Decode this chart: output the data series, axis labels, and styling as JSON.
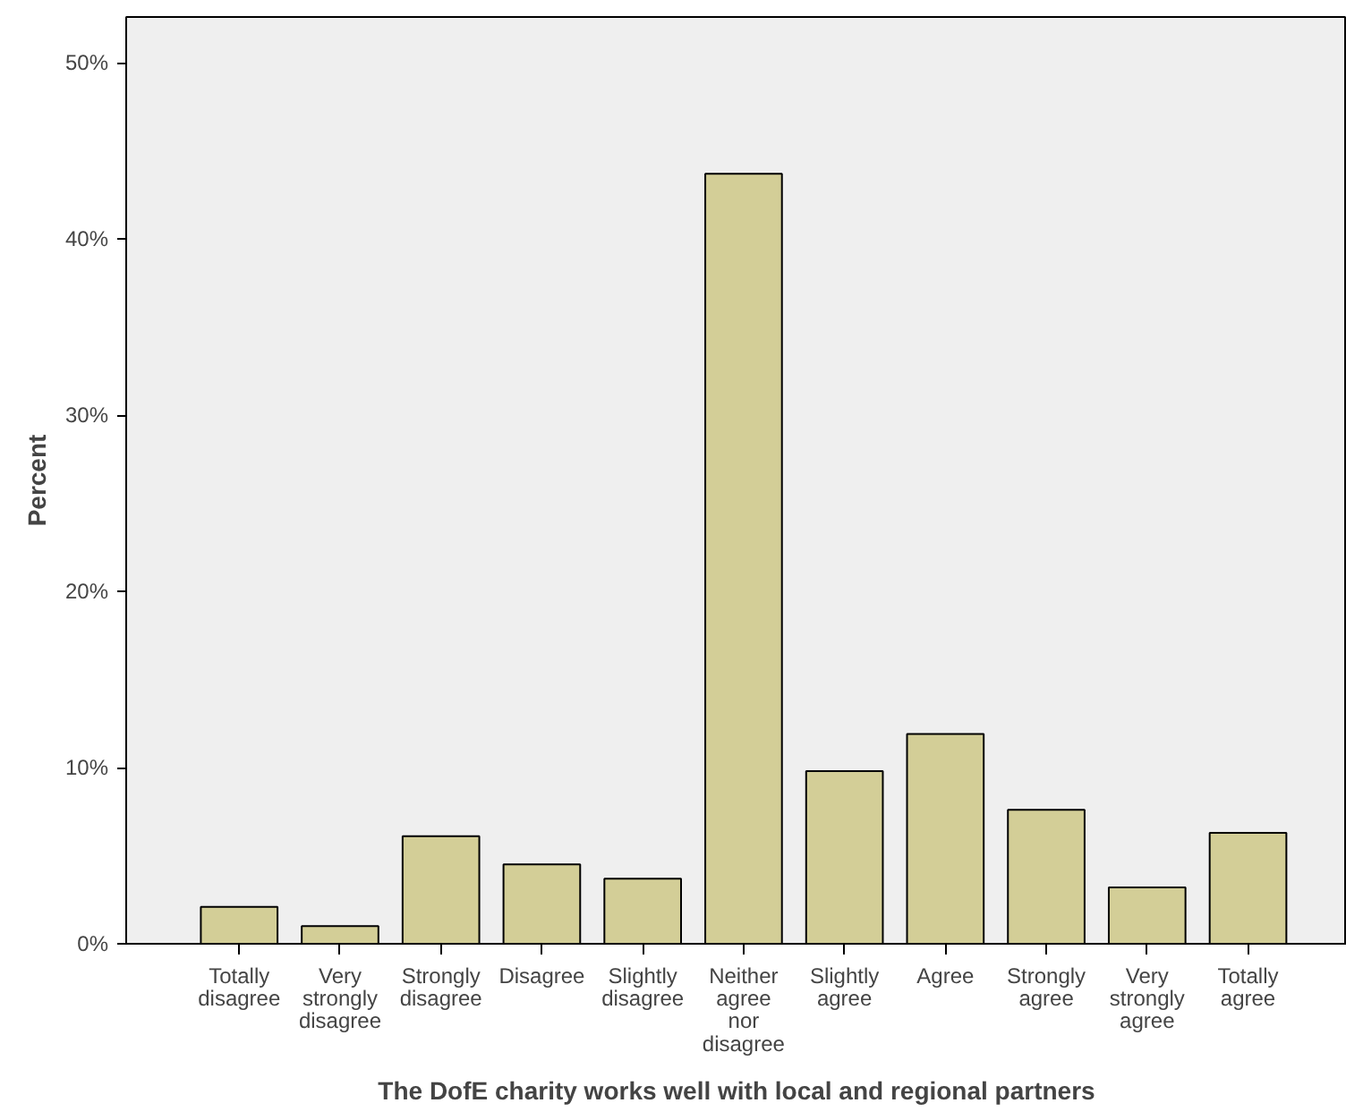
{
  "chart_data": {
    "type": "bar",
    "xlabel": "The DofE charity works well with local and regional partners",
    "ylabel": "Percent",
    "categories": [
      "Totally\ndisagree",
      "Very\nstrongly\ndisagree",
      "Strongly\ndisagree",
      "Disagree",
      "Slightly\ndisagree",
      "Neither\nagree\nnor\ndisagree",
      "Slightly\nagree",
      "Agree",
      "Strongly\nagree",
      "Very\nstrongly\nagree",
      "Totally\nagree"
    ],
    "values": [
      2.1,
      1.0,
      6.1,
      4.5,
      3.7,
      43.7,
      9.8,
      11.9,
      7.6,
      3.2,
      6.3
    ],
    "color": "#d3ce97",
    "ylim": [
      0,
      52.6
    ],
    "yticks": [
      {
        "value": 0,
        "label": "0%"
      },
      {
        "value": 10,
        "label": "10%"
      },
      {
        "value": 20,
        "label": "20%"
      },
      {
        "value": 30,
        "label": "30%"
      },
      {
        "value": 40,
        "label": "40%"
      },
      {
        "value": 50,
        "label": "50%"
      }
    ],
    "grid": false
  }
}
